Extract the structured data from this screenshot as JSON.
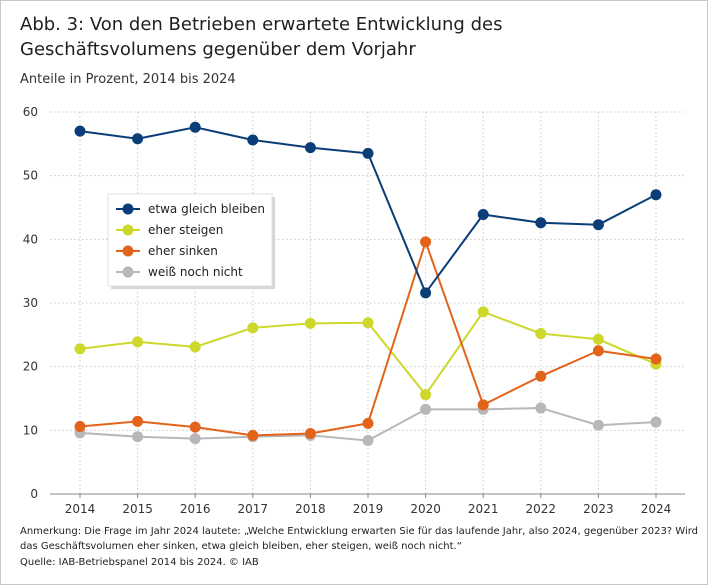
{
  "chart_data": {
    "type": "line",
    "title": "Abb. 3: Von den Betrieben erwartete Entwicklung des Geschäftsvolumens gegenüber dem Vorjahr",
    "subtitle": "Anteile in Prozent, 2014 bis 2024",
    "xlabel": "",
    "ylabel": "",
    "x": [
      "2014",
      "2015",
      "2016",
      "2017",
      "2018",
      "2019",
      "2020",
      "2021",
      "2022",
      "2023",
      "2024"
    ],
    "ylim": [
      0,
      60
    ],
    "yticks": [
      "0",
      "10",
      "20",
      "30",
      "40",
      "50",
      "60"
    ],
    "grid": true,
    "legend_position": "left",
    "series": [
      {
        "name": "etwa gleich bleiben",
        "color": "#0b3d78",
        "values": [
          57.0,
          55.8,
          57.6,
          55.6,
          54.4,
          53.5,
          31.6,
          43.9,
          42.6,
          42.3,
          47.0
        ]
      },
      {
        "name": "eher steigen",
        "color": "#cdd82b",
        "values": [
          22.8,
          23.9,
          23.1,
          26.1,
          26.8,
          26.9,
          15.6,
          28.6,
          25.2,
          24.3,
          20.4
        ]
      },
      {
        "name": "eher sinken",
        "color": "#e2631a",
        "values": [
          10.6,
          11.4,
          10.5,
          9.2,
          9.5,
          11.1,
          39.6,
          14.0,
          18.5,
          22.5,
          21.2
        ]
      },
      {
        "name": "weiß noch nicht",
        "color": "#b8b8b8",
        "values": [
          9.6,
          9.0,
          8.7,
          9.0,
          9.2,
          8.4,
          13.3,
          13.3,
          13.5,
          10.8,
          11.3
        ]
      }
    ]
  },
  "note": "Anmerkung: Die Frage im Jahr 2024 lautete: „Welche Entwicklung erwarten Sie für das laufende Jahr, also 2024, gegenüber 2023? Wird das Geschäftsvolumen eher sinken, etwa gleich bleiben, eher steigen, weiß noch nicht.“",
  "source": "Quelle: IAB-Betriebspanel 2014 bis 2024.  © IAB"
}
